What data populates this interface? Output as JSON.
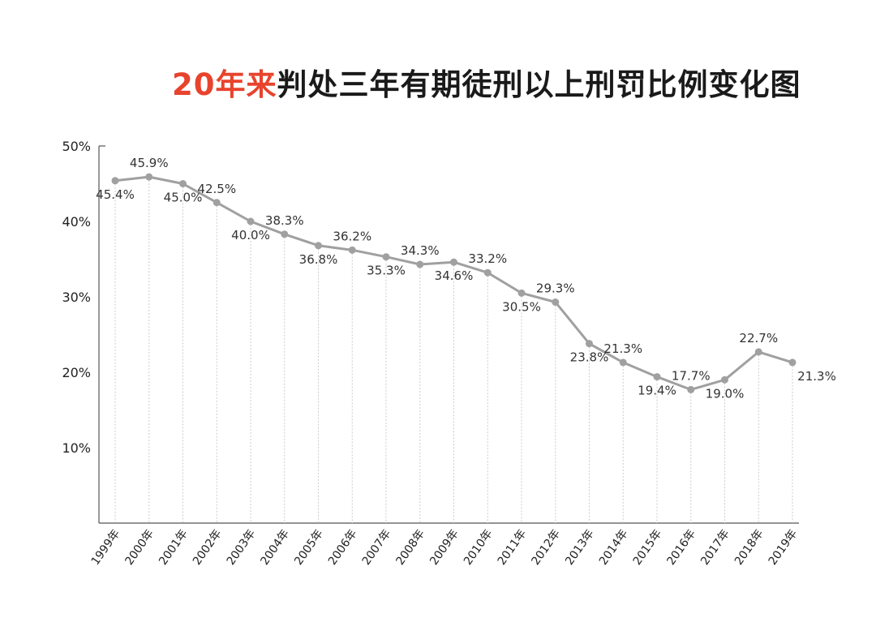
{
  "chart_data": {
    "type": "line",
    "title_highlight": "20年来",
    "title_rest": "判处三年有期徒刑以上刑罚比例变化图",
    "title_highlight_color": "#e8432d",
    "line_color": "#a0a0a0",
    "xlabel": "",
    "ylabel": "",
    "ylim": [
      0,
      50
    ],
    "yticks": [
      "10%",
      "20%",
      "30%",
      "40%",
      "50%"
    ],
    "ytick_values": [
      10,
      20,
      30,
      40,
      50
    ],
    "grid": "vertical dotted lines at each year",
    "categories": [
      "1999年",
      "2000年",
      "2001年",
      "2002年",
      "2003年",
      "2004年",
      "2005年",
      "2006年",
      "2007年",
      "2008年",
      "2009年",
      "2010年",
      "2011年",
      "2012年",
      "2013年",
      "2014年",
      "2015年",
      "2016年",
      "2017年",
      "2018年",
      "2019年"
    ],
    "values": [
      45.4,
      45.9,
      45.0,
      42.5,
      40.0,
      38.3,
      36.8,
      36.2,
      35.3,
      34.3,
      34.6,
      33.2,
      30.5,
      29.3,
      23.8,
      21.3,
      19.4,
      17.7,
      19.0,
      22.7,
      21.3
    ],
    "data_labels": [
      "45.4%",
      "45.9%",
      "45.0%",
      "42.5%",
      "40.0%",
      "38.3%",
      "36.8%",
      "36.2%",
      "35.3%",
      "34.3%",
      "34.6%",
      "33.2%",
      "30.5%",
      "29.3%",
      "23.8%",
      "21.3%",
      "19.4%",
      "17.7%",
      "19.0%",
      "22.7%",
      "21.3%"
    ]
  }
}
